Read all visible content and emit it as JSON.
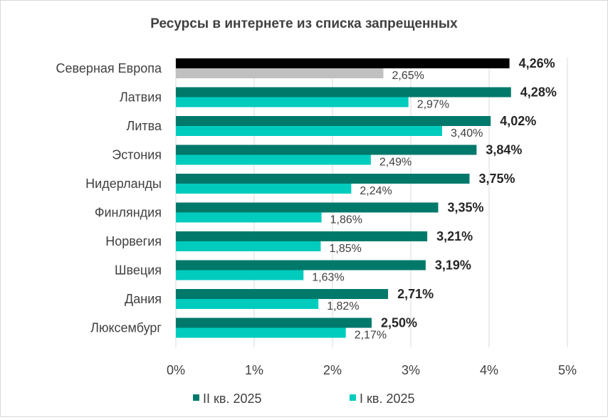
{
  "chart_data": {
    "type": "bar",
    "orientation": "horizontal",
    "title": "Ресурсы в интернете из списка запрещенных",
    "categories": [
      "Северная Европа",
      "Латвия",
      "Литва",
      "Эстония",
      "Нидерланды",
      "Финляндия",
      "Норвегия",
      "Швеция",
      "Дания",
      "Люксембург"
    ],
    "series": [
      {
        "name": "II кв. 2025",
        "values": [
          4.26,
          4.28,
          4.02,
          3.84,
          3.75,
          3.35,
          3.21,
          3.19,
          2.71,
          2.5
        ],
        "labels": [
          "4,26%",
          "4,28%",
          "4,02%",
          "3,84%",
          "3,75%",
          "3,35%",
          "3,21%",
          "3,19%",
          "2,71%",
          "2,50%"
        ],
        "color": "#00796b",
        "highlight_color": "#000000"
      },
      {
        "name": "I кв. 2025",
        "values": [
          2.65,
          2.97,
          3.4,
          2.49,
          2.24,
          1.86,
          1.85,
          1.63,
          1.82,
          2.17
        ],
        "labels": [
          "2,65%",
          "2,97%",
          "3,40%",
          "2,49%",
          "2,24%",
          "1,86%",
          "1,85%",
          "1,63%",
          "1,82%",
          "2,17%"
        ],
        "color": "#00ccbe",
        "highlight_color": "#c0c0c0"
      }
    ],
    "xlim": [
      0,
      5
    ],
    "xticks": [
      "0%",
      "1%",
      "2%",
      "3%",
      "4%",
      "5%"
    ],
    "grid": true,
    "legend": "bottom"
  }
}
